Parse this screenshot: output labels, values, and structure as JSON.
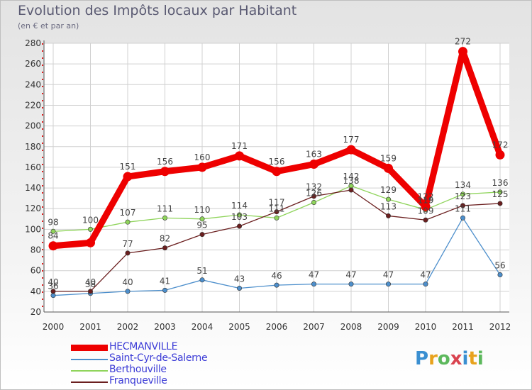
{
  "header": {
    "title": "Evolution des Impôts locaux par Habitant",
    "subtitle": "(en € et par an)"
  },
  "logo": {
    "letters": [
      "P",
      "r",
      "o",
      "x",
      "i",
      "t",
      "i"
    ],
    "colors": [
      "#3a8fd1",
      "#e8a21c",
      "#5cb85c",
      "#d9434f",
      "#3a8fd1",
      "#e8a21c",
      "#5cb85c"
    ]
  },
  "chart_data": {
    "type": "line",
    "title": "Evolution des Impôts locaux par Habitant",
    "subtitle": "(en € et par an)",
    "categories": [
      "2000",
      "2001",
      "2002",
      "2003",
      "2004",
      "2005",
      "2006",
      "2007",
      "2008",
      "2009",
      "2010",
      "2011",
      "2012"
    ],
    "ylim": [
      20,
      280
    ],
    "yticks": [
      20,
      40,
      60,
      80,
      100,
      120,
      140,
      160,
      180,
      200,
      220,
      240,
      260,
      280
    ],
    "grid": true,
    "legend_position": "bottom-left",
    "series": [
      {
        "name": "HECMANVILLE",
        "color": "#ee0000",
        "values": [
          84,
          87,
          151,
          156,
          160,
          171,
          156,
          163,
          177,
          159,
          122,
          272,
          172
        ],
        "labels": [
          "84",
          "",
          "151",
          "156",
          "160",
          "171",
          "156",
          "163",
          "177",
          "159",
          "122",
          "272",
          "172"
        ]
      },
      {
        "name": "Saint-Cyr-de-Salerne",
        "color": "#4d8fcc",
        "values": [
          36,
          38,
          40,
          41,
          51,
          43,
          46,
          47,
          47,
          47,
          47,
          111,
          56
        ],
        "labels": [
          "36",
          "38",
          "40",
          "41",
          "51",
          "43",
          "46",
          "47",
          "47",
          "47",
          "47",
          "111",
          "56"
        ]
      },
      {
        "name": "Berthouville",
        "color": "#8fd45b",
        "values": [
          98,
          100,
          107,
          111,
          110,
          114,
          111,
          126,
          142,
          129,
          119,
          134,
          136
        ],
        "labels": [
          "98",
          "100",
          "107",
          "111",
          "110",
          "114",
          "111",
          "126",
          "142",
          "129",
          "119",
          "134",
          "136"
        ]
      },
      {
        "name": "Franqueville",
        "color": "#6b1f1f",
        "values": [
          40,
          40,
          77,
          82,
          95,
          103,
          117,
          132,
          138,
          113,
          109,
          123,
          125
        ],
        "labels": [
          "40",
          "40",
          "77",
          "82",
          "95",
          "103",
          "117",
          "132",
          "138",
          "113",
          "109",
          "123",
          "125"
        ]
      }
    ]
  }
}
